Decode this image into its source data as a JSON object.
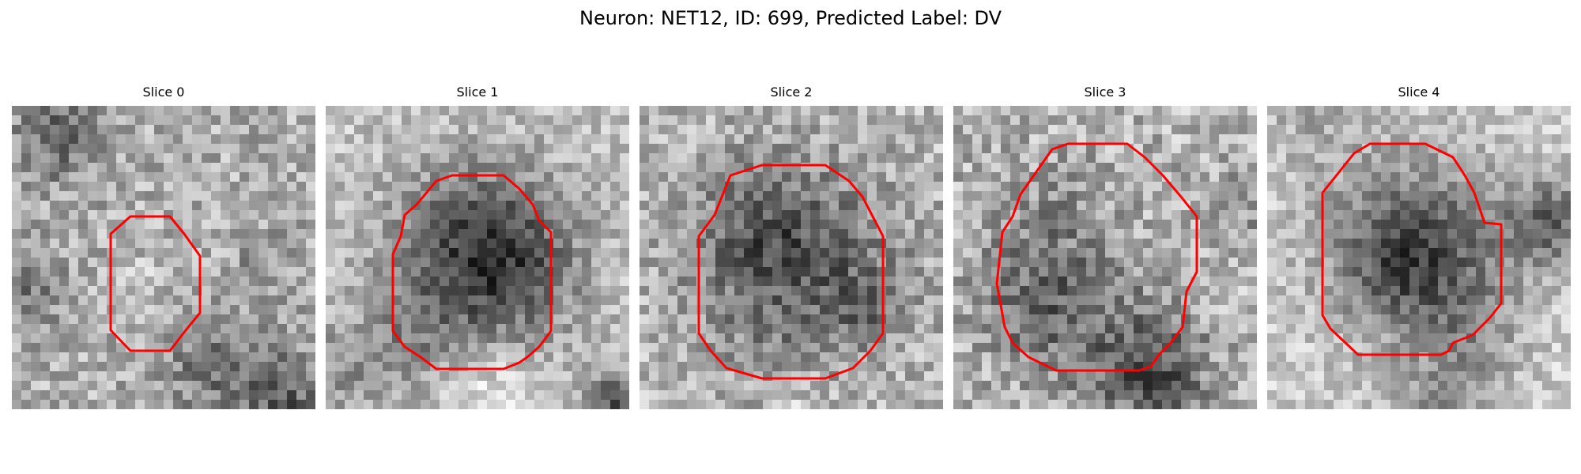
{
  "figure": {
    "title": "Neuron: NET12, ID: 699, Predicted Label: DV"
  },
  "panels": [
    {
      "title": "Slice 0"
    },
    {
      "title": "Slice 1"
    },
    {
      "title": "Slice 2"
    },
    {
      "title": "Slice 3"
    },
    {
      "title": "Slice 4"
    }
  ],
  "contour_color": "#ff0000"
}
